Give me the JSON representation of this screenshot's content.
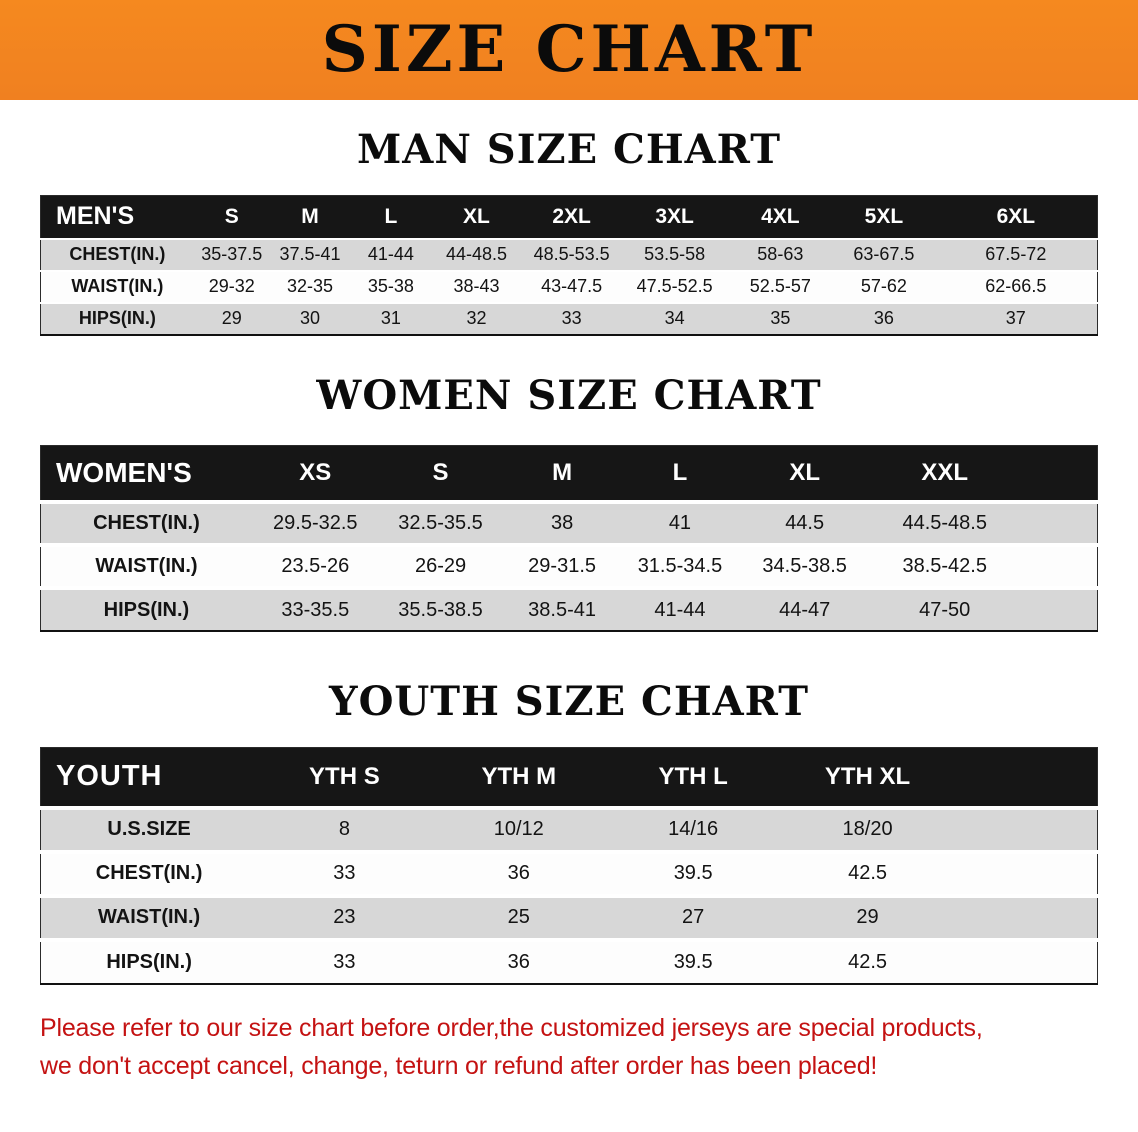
{
  "banner": {
    "title": "SIZE CHART"
  },
  "sections": [
    {
      "heading": "MAN SIZE CHART",
      "table": {
        "header_label": "MEN'S",
        "columns": [
          "S",
          "M",
          "L",
          "XL",
          "2XL",
          "3XL",
          "4XL",
          "5XL",
          "6XL"
        ],
        "rows": [
          {
            "label": "CHEST(IN.)",
            "values": [
              "35-37.5",
              "37.5-41",
              "41-44",
              "44-48.5",
              "48.5-53.5",
              "53.5-58",
              "58-63",
              "63-67.5",
              "67.5-72"
            ]
          },
          {
            "label": "WAIST(IN.)",
            "values": [
              "29-32",
              "32-35",
              "35-38",
              "38-43",
              "43-47.5",
              "47.5-52.5",
              "52.5-57",
              "57-62",
              "62-66.5"
            ]
          },
          {
            "label": "HIPS(IN.)",
            "values": [
              "29",
              "30",
              "31",
              "32",
              "33",
              "34",
              "35",
              "36",
              "37"
            ]
          }
        ]
      }
    },
    {
      "heading": "WOMEN SIZE CHART",
      "table": {
        "header_label": "WOMEN'S",
        "columns": [
          "XS",
          "S",
          "M",
          "L",
          "XL",
          "XXL"
        ],
        "rows": [
          {
            "label": "CHEST(IN.)",
            "values": [
              "29.5-32.5",
              "32.5-35.5",
              "38",
              "41",
              "44.5",
              "44.5-48.5"
            ]
          },
          {
            "label": "WAIST(IN.)",
            "values": [
              "23.5-26",
              "26-29",
              "29-31.5",
              "31.5-34.5",
              "34.5-38.5",
              "38.5-42.5"
            ]
          },
          {
            "label": "HIPS(IN.)",
            "values": [
              "33-35.5",
              "35.5-38.5",
              "38.5-41",
              "41-44",
              "44-47",
              "47-50"
            ]
          }
        ]
      }
    },
    {
      "heading": "YOUTH SIZE CHART",
      "table": {
        "header_label": "YOUTH",
        "columns": [
          "YTH S",
          "YTH M",
          "YTH L",
          "YTH XL"
        ],
        "rows": [
          {
            "label": "U.S.SIZE",
            "values": [
              "8",
              "10/12",
              "14/16",
              "18/20"
            ]
          },
          {
            "label": "CHEST(IN.)",
            "values": [
              "33",
              "36",
              "39.5",
              "42.5"
            ]
          },
          {
            "label": "WAIST(IN.)",
            "values": [
              "23",
              "25",
              "27",
              "29"
            ]
          },
          {
            "label": "HIPS(IN.)",
            "values": [
              "33",
              "36",
              "39.5",
              "42.5"
            ]
          }
        ]
      }
    }
  ],
  "disclaimer": {
    "line1": "Please refer to our size chart before order,the customized jerseys are special products,",
    "line2": "we don't accept cancel, change, teturn or refund after order has been placed!"
  },
  "colors": {
    "banner_orange": "#f08020",
    "header_black": "#161616",
    "row_shade_gray": "#d7d7d7",
    "disclaimer_red": "#c41212"
  }
}
